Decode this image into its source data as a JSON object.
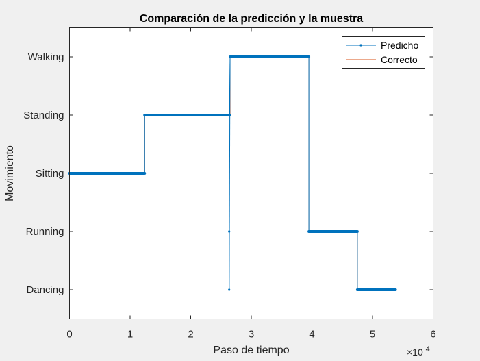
{
  "chart_data": {
    "type": "line",
    "title": "Comparación de la predicción y la muestra",
    "xlabel": "Paso de tiempo",
    "ylabel": "Movimiento",
    "x_exponent_label": "×10",
    "x_exponent_power": "4",
    "xlim": [
      0,
      60000
    ],
    "ylim": [
      0.5,
      5.5
    ],
    "x_ticks": [
      0,
      10000,
      20000,
      30000,
      40000,
      50000,
      60000
    ],
    "x_tick_labels": [
      "0",
      "1",
      "2",
      "3",
      "4",
      "5",
      "6"
    ],
    "y_ticks": [
      1,
      2,
      3,
      4,
      5
    ],
    "y_tick_labels": [
      "Dancing",
      "Running",
      "Sitting",
      "Standing",
      "Walking"
    ],
    "grid": false,
    "legend_position": "top-right",
    "colors": {
      "predicted": "#0072BD",
      "correct": "#D95319"
    },
    "series": [
      {
        "name": "Correcto",
        "style": "step",
        "segments": [
          {
            "x_start": 0,
            "x_end": 12400,
            "y": 3
          },
          {
            "x_start": 12400,
            "x_end": 26500,
            "y": 4
          },
          {
            "x_start": 26500,
            "x_end": 39500,
            "y": 5
          },
          {
            "x_start": 39500,
            "x_end": 47500,
            "y": 2
          },
          {
            "x_start": 47500,
            "x_end": 53800,
            "y": 1
          }
        ]
      },
      {
        "name": "Predicho",
        "style": "step-markers",
        "segments": [
          {
            "x_start": 0,
            "x_end": 12400,
            "y": 3
          },
          {
            "x_start": 12400,
            "x_end": 26400,
            "y": 4
          },
          {
            "x_start": 26500,
            "x_end": 39500,
            "y": 5
          },
          {
            "x_start": 39500,
            "x_end": 47500,
            "y": 2
          },
          {
            "x_start": 47500,
            "x_end": 53800,
            "y": 1
          }
        ],
        "outliers": [
          {
            "x": 26350,
            "y": 1
          },
          {
            "x": 26350,
            "y": 2
          }
        ]
      }
    ]
  }
}
